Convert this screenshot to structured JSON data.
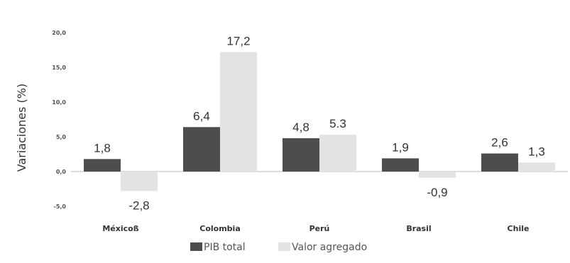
{
  "chart_data": {
    "type": "bar",
    "categories": [
      "Méxicoß",
      "Colombia",
      "Perú",
      "Brasil",
      "Chile"
    ],
    "series": [
      {
        "name": "PIB total",
        "values": [
          1.8,
          6.4,
          4.8,
          1.9,
          2.6
        ],
        "labels": [
          "1,8",
          "6,4",
          "4,8",
          "1,9",
          "2,6"
        ],
        "color": "#4d4d4d"
      },
      {
        "name": "Valor agregado",
        "values": [
          -2.8,
          17.2,
          5.3,
          -0.9,
          1.3
        ],
        "labels": [
          "-2,8",
          "17,2",
          "5.3",
          "-0,9",
          "1,3"
        ],
        "color": "#e3e3e3"
      }
    ],
    "ylabel": "Variaciones (%)",
    "ylim": [
      -5,
      20
    ],
    "yticks": [
      {
        "value": 20,
        "label": "20,0"
      },
      {
        "value": 15,
        "label": "15,0"
      },
      {
        "value": 10,
        "label": "10,0"
      },
      {
        "value": 5,
        "label": "5,0"
      },
      {
        "value": 0,
        "label": "0,0"
      },
      {
        "value": -5,
        "label": "-5,0"
      }
    ],
    "grid": false,
    "legend_position": "bottom"
  }
}
